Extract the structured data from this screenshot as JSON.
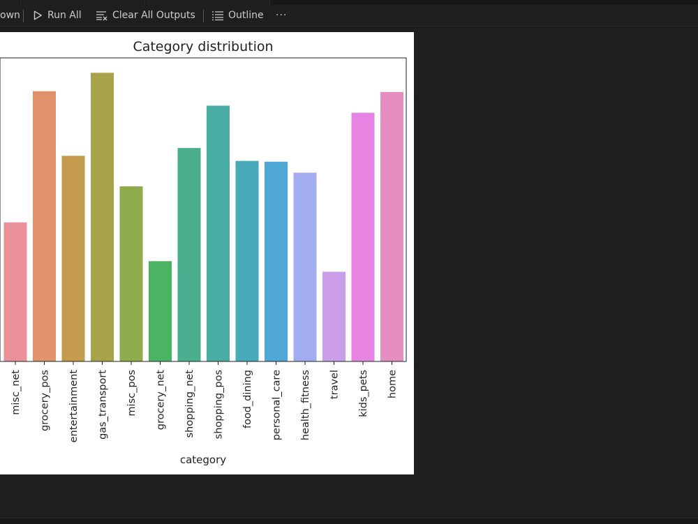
{
  "toolbar": {
    "markdown_label": "own",
    "run_all_label": "Run All",
    "clear_outputs_label": "Clear All Outputs",
    "outline_label": "Outline",
    "more_label": "···"
  },
  "colors": {
    "background": "#1e1e1e",
    "toolbar": "#1f1f1f",
    "output_bg": "#ffffff"
  },
  "chart_data": {
    "type": "bar",
    "title": "Category distribution",
    "xlabel": "category",
    "ylabel": "",
    "ylim": [
      0,
      7.75
    ],
    "categories": [
      "misc_net",
      "grocery_pos",
      "entertainment",
      "gas_transport",
      "misc_pos",
      "grocery_net",
      "shopping_net",
      "shopping_pos",
      "food_dining",
      "personal_care",
      "health_fitness",
      "travel",
      "kids_pets",
      "home"
    ],
    "values": [
      3.55,
      6.9,
      5.25,
      7.37,
      4.47,
      2.56,
      5.45,
      6.53,
      5.12,
      5.1,
      4.82,
      2.29,
      6.35,
      6.88
    ],
    "colors": [
      "#e8919b",
      "#e0936a",
      "#c49a4f",
      "#a8a24a",
      "#8fac4c",
      "#4db364",
      "#4aae8f",
      "#4aada3",
      "#47aab8",
      "#4fa8d6",
      "#a3acef",
      "#c99de8",
      "#e683e3",
      "#e48fc0"
    ],
    "grid": false
  }
}
